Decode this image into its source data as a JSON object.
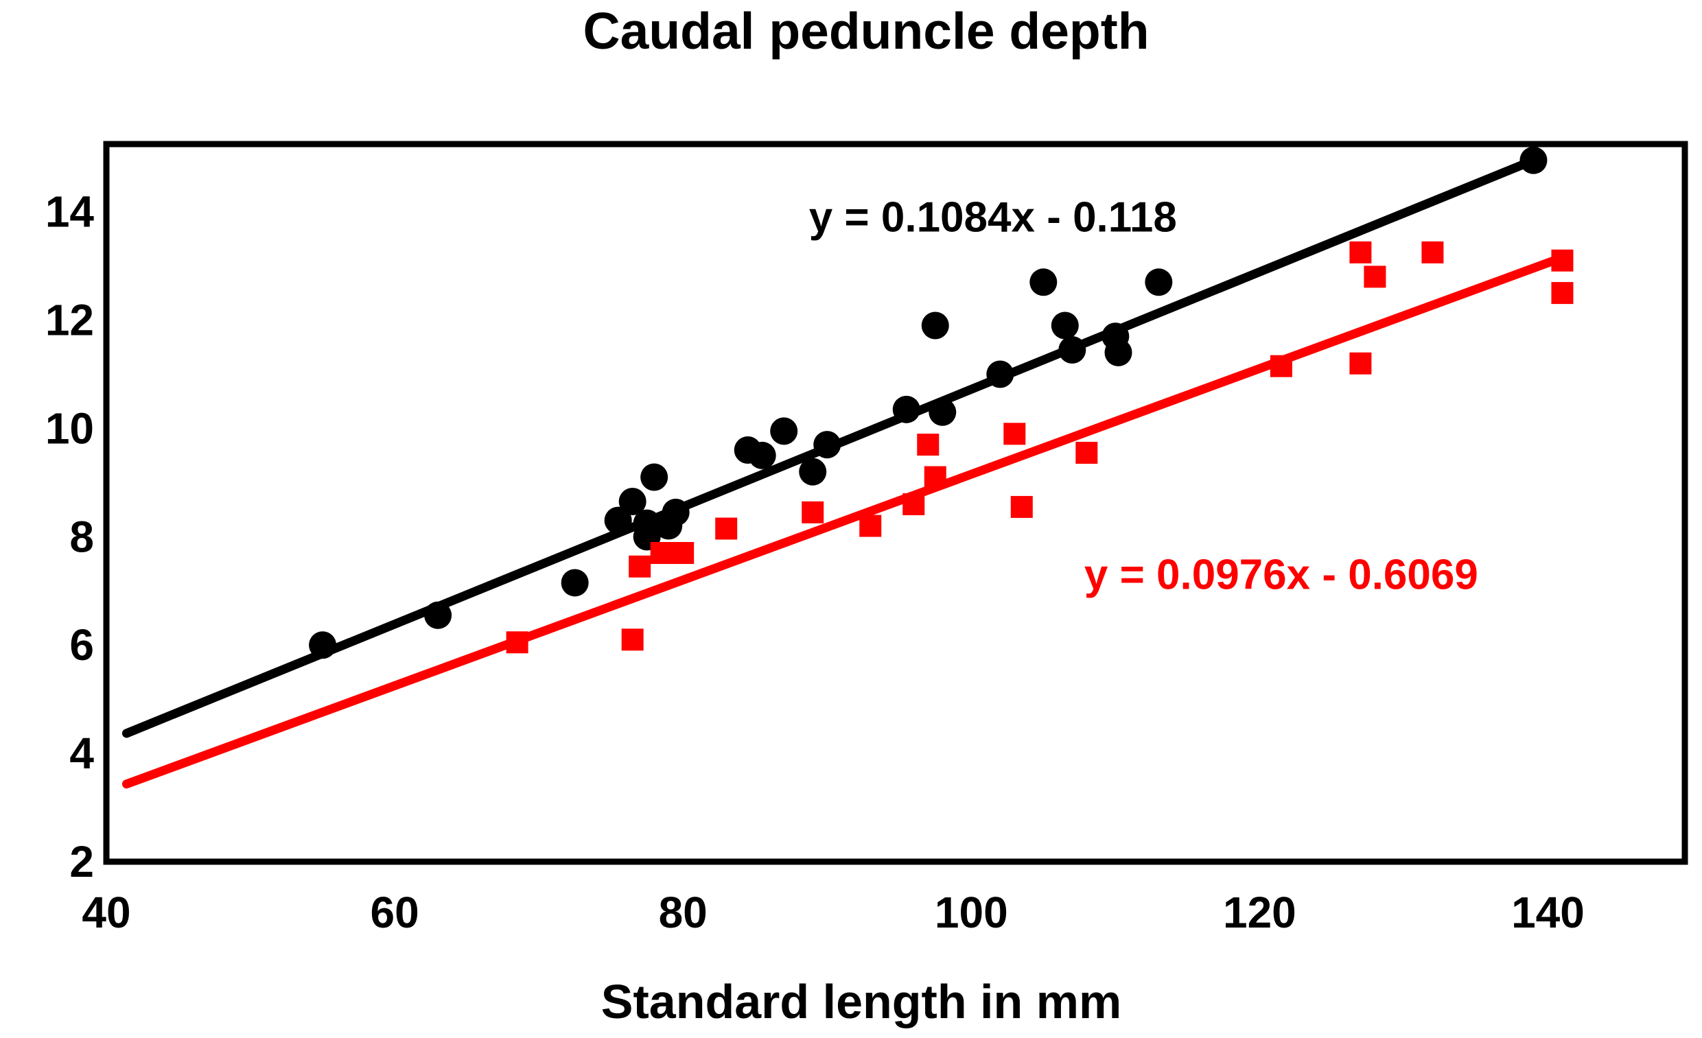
{
  "title": "Caudal peduncle depth",
  "colors": {
    "black_series": "#000000",
    "red_series": "#FF0000",
    "background": "#FFFFFF",
    "frame": "#000000"
  },
  "chart_data": {
    "type": "scatter",
    "title": "Caudal peduncle depth",
    "xlabel": "Standard length in mm",
    "ylabel": "",
    "grid": false,
    "legend": "none",
    "x_range": [
      40,
      149.5
    ],
    "y_range": [
      2,
      15.25
    ],
    "x_ticks": [
      40,
      60,
      80,
      100,
      120,
      140
    ],
    "y_ticks": [
      2,
      4,
      6,
      8,
      10,
      12,
      14
    ],
    "series": [
      {
        "name": "black-circles",
        "marker": "circle",
        "color": "#000000",
        "points": [
          [
            55,
            6.0
          ],
          [
            63,
            6.55
          ],
          [
            72.5,
            7.15
          ],
          [
            75.5,
            8.3
          ],
          [
            76.5,
            8.65
          ],
          [
            78,
            9.1
          ],
          [
            77.5,
            8.25
          ],
          [
            77.5,
            8.0
          ],
          [
            79,
            8.2
          ],
          [
            79.5,
            8.45
          ],
          [
            84.5,
            9.6
          ],
          [
            85.5,
            9.5
          ],
          [
            87,
            9.95
          ],
          [
            89,
            9.2
          ],
          [
            90,
            9.7
          ],
          [
            95.5,
            10.35
          ],
          [
            98,
            10.3
          ],
          [
            97.5,
            11.9
          ],
          [
            102,
            11.0
          ],
          [
            105,
            12.7
          ],
          [
            106.5,
            11.9
          ],
          [
            107,
            11.45
          ],
          [
            110,
            11.7
          ],
          [
            110.2,
            11.4
          ],
          [
            113,
            12.7
          ],
          [
            139,
            14.95
          ]
        ],
        "trendline": {
          "slope": 0.1084,
          "intercept": -0.118,
          "x_span": [
            41.4,
            139.6
          ]
        }
      },
      {
        "name": "red-squares",
        "marker": "square",
        "color": "#FF0000",
        "points": [
          [
            68.5,
            6.05
          ],
          [
            76.5,
            6.1
          ],
          [
            77,
            7.45
          ],
          [
            78.5,
            7.7
          ],
          [
            80,
            7.7
          ],
          [
            83,
            8.15
          ],
          [
            89,
            8.45
          ],
          [
            93,
            8.2
          ],
          [
            96,
            8.6
          ],
          [
            97.5,
            9.1
          ],
          [
            97,
            9.7
          ],
          [
            103,
            9.9
          ],
          [
            103.5,
            8.55
          ],
          [
            108,
            9.55
          ],
          [
            121.5,
            11.15
          ],
          [
            127,
            11.2
          ],
          [
            127,
            13.25
          ],
          [
            128,
            12.8
          ],
          [
            132,
            13.25
          ],
          [
            141,
            13.1
          ],
          [
            141,
            12.5
          ]
        ],
        "trendline": {
          "slope": 0.0976,
          "intercept": -0.6069,
          "x_span": [
            41.4,
            140.8
          ]
        }
      }
    ],
    "annotations": [
      {
        "text": "y = 0.1084x - 0.118",
        "x": 101.5,
        "y": 13.9,
        "color": "#000000"
      },
      {
        "text": "y = 0.0976x - 0.6069",
        "x": 121.5,
        "y": 7.3,
        "color": "#FF0000"
      }
    ]
  }
}
